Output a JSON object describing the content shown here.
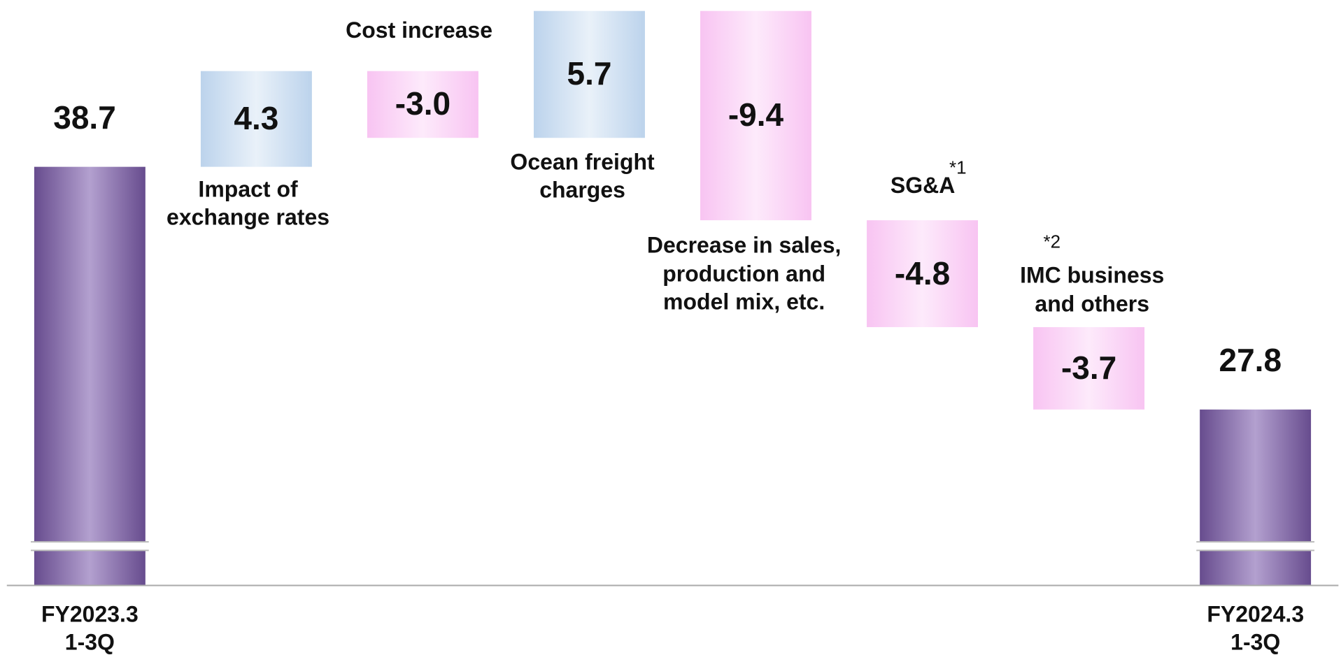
{
  "chart_data": {
    "type": "waterfall",
    "categories": [
      "FY2023.3\n1-3Q",
      "Impact of\nexchange rates",
      "Cost increase",
      "Ocean freight\ncharges",
      "Decrease in sales,\nproduction and\nmodel mix, etc.",
      "SG&A",
      "IMC business\nand others",
      "FY2024.3\n1-3Q"
    ],
    "values": [
      38.7,
      4.3,
      -3.0,
      5.7,
      -9.4,
      -4.8,
      -3.7,
      27.8
    ],
    "value_labels": [
      "38.7",
      "4.3",
      "-3.0",
      "5.7",
      "-9.4",
      "-4.8",
      "-3.7",
      "27.8"
    ],
    "measure": [
      "absolute",
      "relative",
      "relative",
      "relative",
      "relative",
      "relative",
      "relative",
      "absolute"
    ],
    "annotations": [
      "*1",
      "*2"
    ],
    "colors": {
      "total": [
        "#674c8e",
        "#b3a0cf"
      ],
      "increase": [
        "#bcd3ec",
        "#e9f1f9"
      ],
      "decrease": [
        "#f8c4f2",
        "#fdeafb"
      ]
    },
    "ylim": [
      19.9,
      46.0
    ],
    "axis_break": true
  }
}
